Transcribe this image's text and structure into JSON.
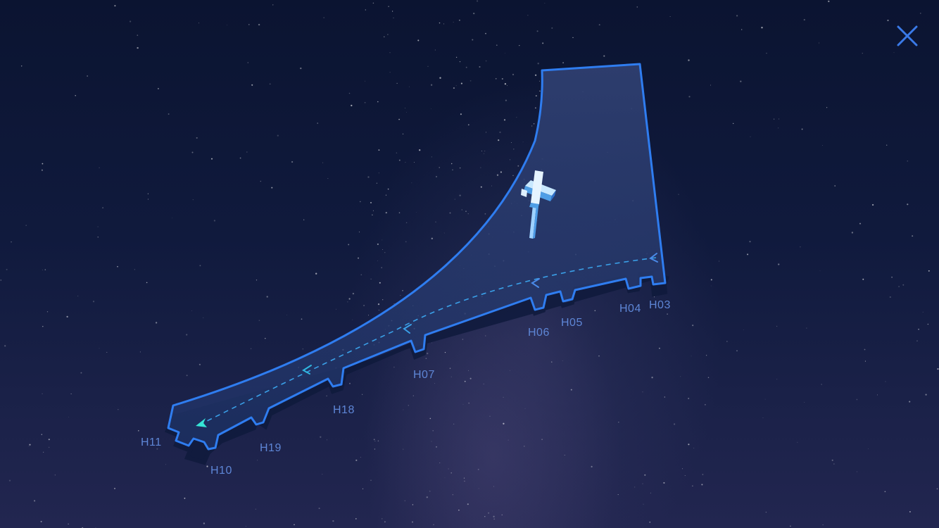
{
  "colors": {
    "outline": "#2f7df0",
    "fill": "#2a3a6e",
    "route": "#3aa0e8",
    "label": "#5e86d6",
    "close": "#3a7ae8"
  },
  "icons": {
    "close": "close-icon",
    "aircraft": "aircraft-icon",
    "direction": "direction-arrow-icon"
  },
  "gates": [
    "H03",
    "H04",
    "H05",
    "H06",
    "H07",
    "H18",
    "H19",
    "H10",
    "H11"
  ]
}
